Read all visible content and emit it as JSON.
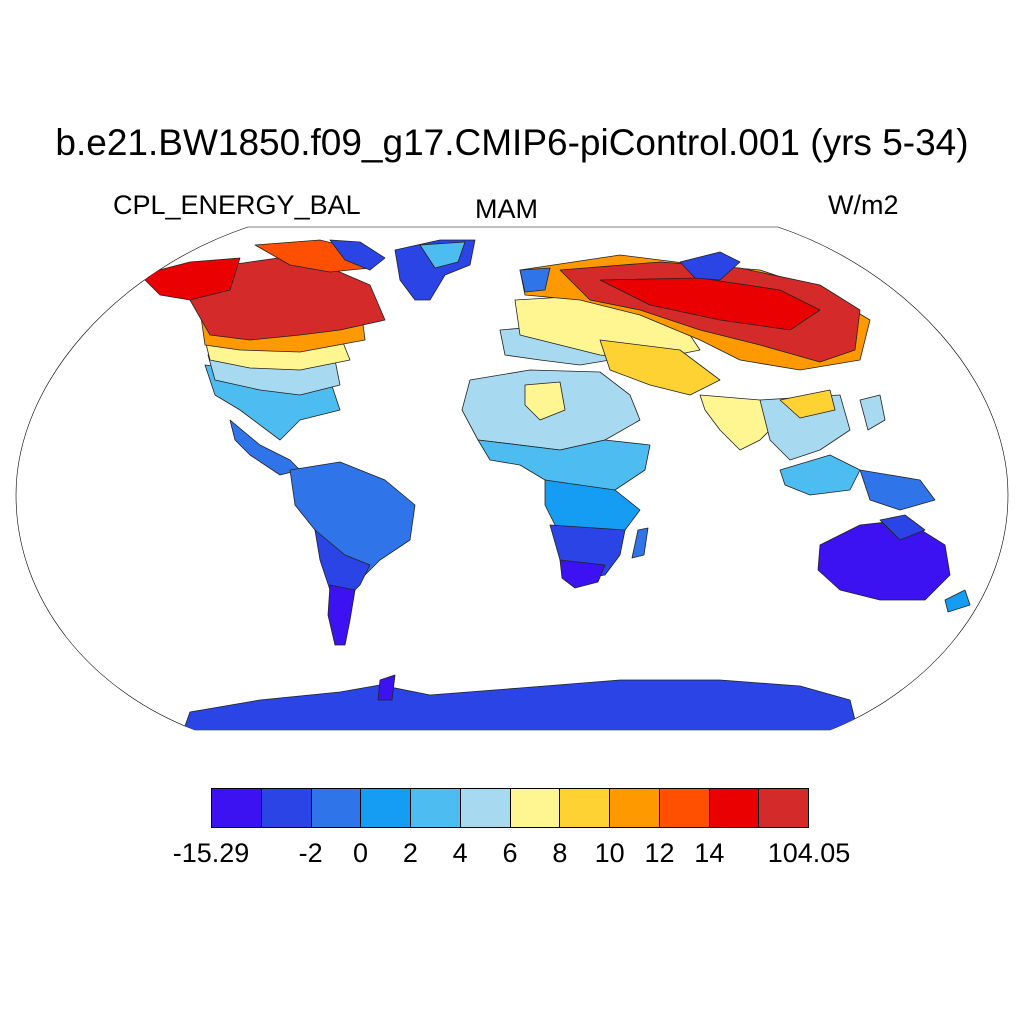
{
  "title": "b.e21.BW1850.f09_g17.CMIP6-piControl.001 (yrs 5-34)",
  "variable": "CPL_ENERGY_BAL",
  "season": "MAM",
  "units": "W/m2",
  "map": {
    "projection": "Robinson",
    "ocean_color": "#ffffff",
    "coastline_color": "#000000"
  },
  "colorbar": {
    "colors": [
      "#3c12f2",
      "#2a44e6",
      "#2f74e8",
      "#149df2",
      "#4dbcf0",
      "#a7d9f0",
      "#fff591",
      "#ffd233",
      "#ff9900",
      "#ff4f00",
      "#ea0000",
      "#d42a2a"
    ],
    "labels": [
      {
        "text": "-15.29",
        "boundary": 0
      },
      {
        "text": "-2",
        "boundary": 2
      },
      {
        "text": "0",
        "boundary": 3
      },
      {
        "text": "2",
        "boundary": 4
      },
      {
        "text": "4",
        "boundary": 5
      },
      {
        "text": "6",
        "boundary": 6
      },
      {
        "text": "8",
        "boundary": 7
      },
      {
        "text": "10",
        "boundary": 8
      },
      {
        "text": "12",
        "boundary": 9
      },
      {
        "text": "14",
        "boundary": 10
      },
      {
        "text": "104.05",
        "boundary": 12
      }
    ]
  }
}
